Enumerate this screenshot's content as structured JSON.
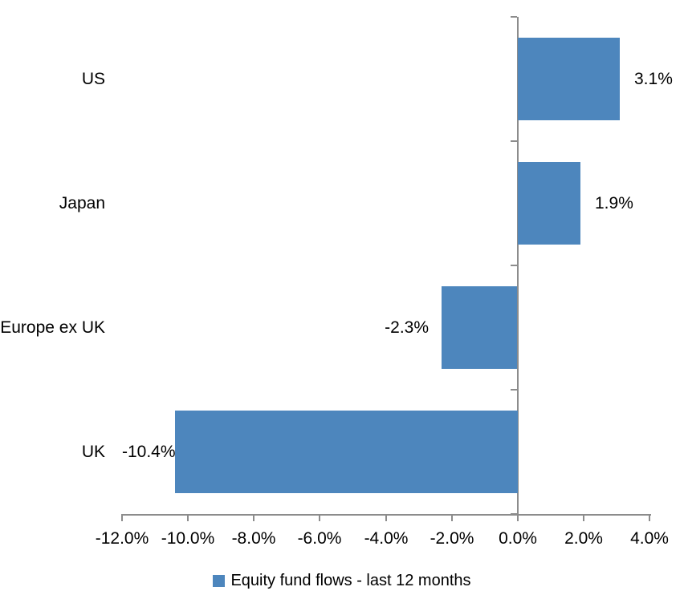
{
  "chart_data": {
    "type": "bar",
    "orientation": "horizontal",
    "categories": [
      "US",
      "Japan",
      "Europe ex UK",
      "UK"
    ],
    "series": [
      {
        "name": "Equity fund flows - last 12 months",
        "values": [
          3.1,
          1.9,
          -2.3,
          -10.4
        ],
        "value_labels": [
          "3.1%",
          "1.9%",
          "-2.3%",
          "-10.4%"
        ]
      }
    ],
    "title": "",
    "xlabel": "",
    "ylabel": "",
    "xlim": [
      -12,
      4
    ],
    "x_ticks": [
      {
        "value": -12,
        "label": "-12.0%"
      },
      {
        "value": -10,
        "label": "-10.0%"
      },
      {
        "value": -8,
        "label": "-8.0%"
      },
      {
        "value": -6,
        "label": "-6.0%"
      },
      {
        "value": -4,
        "label": "-4.0%"
      },
      {
        "value": -2,
        "label": "-2.0%"
      },
      {
        "value": 0,
        "label": "0.0%"
      },
      {
        "value": 2,
        "label": "2.0%"
      },
      {
        "value": 4,
        "label": "4.0%"
      }
    ],
    "grid": false,
    "legend_position": "bottom",
    "colors": {
      "bar": "#4D86BD",
      "axis": "#8C8C8C",
      "text": "#000000",
      "background": "#FFFFFF"
    }
  }
}
